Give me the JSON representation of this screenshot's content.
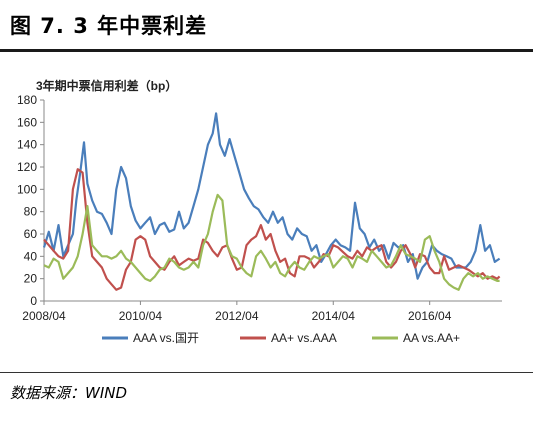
{
  "figure_title": "图 7. 3 年中票利差",
  "source": "数据来源：WIND",
  "colors": {
    "AAA": "#4a7ebb",
    "AAplus": "#c0504d",
    "AA": "#9bbb59",
    "axis": "#888888"
  },
  "chart_data": {
    "type": "line",
    "title": "3年期中票信用利差（bp）",
    "xlabel": "",
    "ylabel": "",
    "ylim": [
      0,
      180
    ],
    "yticks": [
      0,
      20,
      40,
      60,
      80,
      100,
      120,
      140,
      160,
      180
    ],
    "xlim": [
      2008.25,
      2017.75
    ],
    "xticks": [
      {
        "label": "2008/04",
        "value": 2008.25
      },
      {
        "label": "2010/04",
        "value": 2010.25
      },
      {
        "label": "2012/04",
        "value": 2012.25
      },
      {
        "label": "2014/04",
        "value": 2014.25
      },
      {
        "label": "2016/04",
        "value": 2016.25
      }
    ],
    "legend_position": "bottom",
    "grid": false,
    "series": [
      {
        "name": "AAA vs.国开",
        "x": [
          2008.25,
          2008.35,
          2008.45,
          2008.55,
          2008.65,
          2008.75,
          2008.85,
          2008.92,
          2009.0,
          2009.08,
          2009.15,
          2009.25,
          2009.35,
          2009.45,
          2009.55,
          2009.65,
          2009.75,
          2009.85,
          2009.95,
          2010.05,
          2010.15,
          2010.25,
          2010.35,
          2010.45,
          2010.55,
          2010.65,
          2010.75,
          2010.85,
          2010.95,
          2011.05,
          2011.15,
          2011.25,
          2011.35,
          2011.45,
          2011.55,
          2011.65,
          2011.75,
          2011.82,
          2011.9,
          2012.0,
          2012.1,
          2012.2,
          2012.3,
          2012.4,
          2012.5,
          2012.6,
          2012.7,
          2012.8,
          2012.9,
          2013.0,
          2013.1,
          2013.2,
          2013.3,
          2013.4,
          2013.5,
          2013.6,
          2013.7,
          2013.8,
          2013.9,
          2014.0,
          2014.1,
          2014.2,
          2014.3,
          2014.4,
          2014.5,
          2014.6,
          2014.7,
          2014.8,
          2014.9,
          2015.0,
          2015.1,
          2015.2,
          2015.3,
          2015.4,
          2015.5,
          2015.6,
          2015.7,
          2015.8,
          2015.9,
          2016.0,
          2016.1,
          2016.2,
          2016.3,
          2016.4,
          2016.5,
          2016.6,
          2016.7,
          2016.8,
          2016.9,
          2017.0,
          2017.1,
          2017.2,
          2017.3,
          2017.4,
          2017.5,
          2017.6,
          2017.7
        ],
        "values": [
          48,
          62,
          45,
          68,
          40,
          50,
          60,
          90,
          115,
          142,
          105,
          90,
          80,
          78,
          70,
          60,
          100,
          120,
          110,
          85,
          72,
          65,
          70,
          75,
          60,
          68,
          70,
          62,
          64,
          80,
          65,
          70,
          85,
          100,
          120,
          140,
          150,
          168,
          140,
          130,
          145,
          130,
          115,
          100,
          92,
          85,
          82,
          75,
          70,
          80,
          70,
          75,
          60,
          55,
          65,
          60,
          58,
          45,
          50,
          35,
          42,
          50,
          55,
          50,
          48,
          45,
          88,
          65,
          60,
          48,
          55,
          45,
          50,
          38,
          52,
          48,
          50,
          35,
          42,
          20,
          30,
          35,
          50,
          45,
          42,
          40,
          38,
          30,
          30,
          30,
          35,
          45,
          68,
          45,
          50,
          35,
          38
        ],
        "color": "#4a7ebb"
      },
      {
        "name": "AA+ vs.AAA",
        "x": [
          2008.25,
          2008.35,
          2008.45,
          2008.55,
          2008.65,
          2008.75,
          2008.85,
          2008.95,
          2009.05,
          2009.15,
          2009.25,
          2009.35,
          2009.45,
          2009.55,
          2009.65,
          2009.75,
          2009.85,
          2009.95,
          2010.05,
          2010.15,
          2010.25,
          2010.35,
          2010.45,
          2010.55,
          2010.65,
          2010.75,
          2010.85,
          2010.95,
          2011.05,
          2011.15,
          2011.25,
          2011.35,
          2011.45,
          2011.55,
          2011.65,
          2011.75,
          2011.85,
          2011.95,
          2012.05,
          2012.15,
          2012.25,
          2012.35,
          2012.45,
          2012.55,
          2012.65,
          2012.75,
          2012.85,
          2012.95,
          2013.05,
          2013.15,
          2013.25,
          2013.35,
          2013.45,
          2013.55,
          2013.65,
          2013.75,
          2013.85,
          2013.95,
          2014.05,
          2014.15,
          2014.25,
          2014.35,
          2014.45,
          2014.55,
          2014.65,
          2014.75,
          2014.85,
          2014.95,
          2015.05,
          2015.15,
          2015.25,
          2015.35,
          2015.45,
          2015.55,
          2015.65,
          2015.75,
          2015.85,
          2015.95,
          2016.05,
          2016.15,
          2016.25,
          2016.35,
          2016.45,
          2016.55,
          2016.65,
          2016.75,
          2016.85,
          2016.95,
          2017.05,
          2017.15,
          2017.25,
          2017.35,
          2017.45,
          2017.55,
          2017.65,
          2017.7
        ],
        "values": [
          55,
          50,
          45,
          40,
          38,
          45,
          100,
          118,
          115,
          70,
          40,
          35,
          30,
          20,
          15,
          10,
          12,
          28,
          35,
          55,
          58,
          55,
          40,
          35,
          30,
          28,
          35,
          40,
          32,
          35,
          38,
          36,
          38,
          55,
          52,
          45,
          40,
          48,
          50,
          38,
          28,
          30,
          50,
          55,
          58,
          68,
          55,
          60,
          45,
          35,
          38,
          25,
          22,
          40,
          40,
          38,
          30,
          35,
          42,
          40,
          50,
          48,
          44,
          40,
          38,
          45,
          40,
          48,
          45,
          48,
          50,
          35,
          30,
          35,
          45,
          50,
          42,
          30,
          42,
          40,
          30,
          25,
          25,
          40,
          28,
          30,
          32,
          30,
          28,
          25,
          22,
          25,
          20,
          22,
          20,
          22
        ],
        "color": "#c0504d"
      },
      {
        "name": "AA vs.AA+",
        "x": [
          2008.25,
          2008.35,
          2008.45,
          2008.55,
          2008.65,
          2008.75,
          2008.85,
          2008.95,
          2009.05,
          2009.15,
          2009.25,
          2009.35,
          2009.45,
          2009.55,
          2009.65,
          2009.75,
          2009.85,
          2009.95,
          2010.05,
          2010.15,
          2010.25,
          2010.35,
          2010.45,
          2010.55,
          2010.65,
          2010.75,
          2010.85,
          2010.95,
          2011.05,
          2011.15,
          2011.25,
          2011.35,
          2011.45,
          2011.55,
          2011.65,
          2011.75,
          2011.85,
          2011.95,
          2012.05,
          2012.15,
          2012.25,
          2012.35,
          2012.45,
          2012.55,
          2012.65,
          2012.75,
          2012.85,
          2012.95,
          2013.05,
          2013.15,
          2013.25,
          2013.35,
          2013.45,
          2013.55,
          2013.65,
          2013.75,
          2013.85,
          2013.95,
          2014.05,
          2014.15,
          2014.25,
          2014.35,
          2014.45,
          2014.55,
          2014.65,
          2014.75,
          2014.85,
          2014.95,
          2015.05,
          2015.15,
          2015.25,
          2015.35,
          2015.45,
          2015.55,
          2015.65,
          2015.75,
          2015.85,
          2015.95,
          2016.05,
          2016.15,
          2016.25,
          2016.35,
          2016.45,
          2016.55,
          2016.65,
          2016.75,
          2016.85,
          2016.95,
          2017.05,
          2017.15,
          2017.25,
          2017.35,
          2017.45,
          2017.55,
          2017.65,
          2017.7
        ],
        "values": [
          32,
          30,
          38,
          35,
          20,
          25,
          30,
          40,
          60,
          85,
          50,
          45,
          40,
          40,
          38,
          40,
          45,
          38,
          35,
          30,
          25,
          20,
          18,
          22,
          28,
          30,
          38,
          35,
          30,
          28,
          30,
          35,
          30,
          50,
          60,
          80,
          95,
          90,
          50,
          40,
          38,
          30,
          25,
          22,
          40,
          45,
          38,
          30,
          35,
          25,
          22,
          30,
          35,
          30,
          28,
          35,
          40,
          38,
          40,
          42,
          30,
          35,
          40,
          38,
          30,
          40,
          38,
          35,
          45,
          40,
          35,
          30,
          32,
          40,
          50,
          42,
          40,
          38,
          35,
          55,
          58,
          45,
          35,
          20,
          15,
          12,
          10,
          20,
          25,
          22,
          25,
          20,
          22,
          20,
          18,
          18
        ],
        "color": "#9bbb59"
      }
    ]
  }
}
